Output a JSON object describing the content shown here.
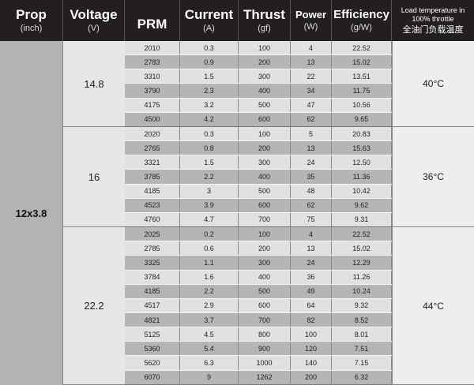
{
  "header": {
    "prop": {
      "title": "Prop",
      "unit": "(inch)"
    },
    "voltage": {
      "title": "Voltage",
      "unit": "(V)"
    },
    "prm": {
      "title": "PRM"
    },
    "current": {
      "title": "Current",
      "unit": "(A)"
    },
    "thrust": {
      "title": "Thrust",
      "unit": "(gf)"
    },
    "power": {
      "title": "Power",
      "unit": "(W)"
    },
    "efficiency": {
      "title": "Efficiency",
      "unit": "(g/W)"
    },
    "temp": {
      "title": "Load temperature in 100% throttle",
      "subtitle": "全油门负载温度"
    }
  },
  "prop": "12x3.8",
  "groups": [
    {
      "voltage": "14.8",
      "temp": "40°C",
      "rows": [
        [
          "2010",
          "0.3",
          "100",
          "4",
          "22.52"
        ],
        [
          "2783",
          "0.9",
          "200",
          "13",
          "15.02"
        ],
        [
          "3310",
          "1.5",
          "300",
          "22",
          "13.51"
        ],
        [
          "3790",
          "2.3",
          "400",
          "34",
          "11.75"
        ],
        [
          "4175",
          "3.2",
          "500",
          "47",
          "10.56"
        ],
        [
          "4500",
          "4.2",
          "600",
          "62",
          "9.65"
        ]
      ]
    },
    {
      "voltage": "16",
      "temp": "36°C",
      "rows": [
        [
          "2020",
          "0.3",
          "100",
          "5",
          "20.83"
        ],
        [
          "2765",
          "0.8",
          "200",
          "13",
          "15.63"
        ],
        [
          "3321",
          "1.5",
          "300",
          "24",
          "12.50"
        ],
        [
          "3785",
          "2.2",
          "400",
          "35",
          "11.36"
        ],
        [
          "4185",
          "3",
          "500",
          "48",
          "10.42"
        ],
        [
          "4523",
          "3.9",
          "600",
          "62",
          "9.62"
        ],
        [
          "4760",
          "4.7",
          "700",
          "75",
          "9.31"
        ]
      ]
    },
    {
      "voltage": "22.2",
      "temp": "44°C",
      "rows": [
        [
          "2025",
          "0.2",
          "100",
          "4",
          "22.52"
        ],
        [
          "2785",
          "0.6",
          "200",
          "13",
          "15.02"
        ],
        [
          "3325",
          "1.1",
          "300",
          "24",
          "12.29"
        ],
        [
          "3784",
          "1.6",
          "400",
          "36",
          "11.26"
        ],
        [
          "4185",
          "2.2",
          "500",
          "49",
          "10.24"
        ],
        [
          "4517",
          "2.9",
          "600",
          "64",
          "9.32"
        ],
        [
          "4821",
          "3.7",
          "700",
          "82",
          "8.52"
        ],
        [
          "5125",
          "4.5",
          "800",
          "100",
          "8.01"
        ],
        [
          "5360",
          "5.4",
          "900",
          "120",
          "7.51"
        ],
        [
          "5620",
          "6.3",
          "1000",
          "140",
          "7.15"
        ],
        [
          "6070",
          "9",
          "1262",
          "200",
          "6.32"
        ]
      ]
    }
  ]
}
